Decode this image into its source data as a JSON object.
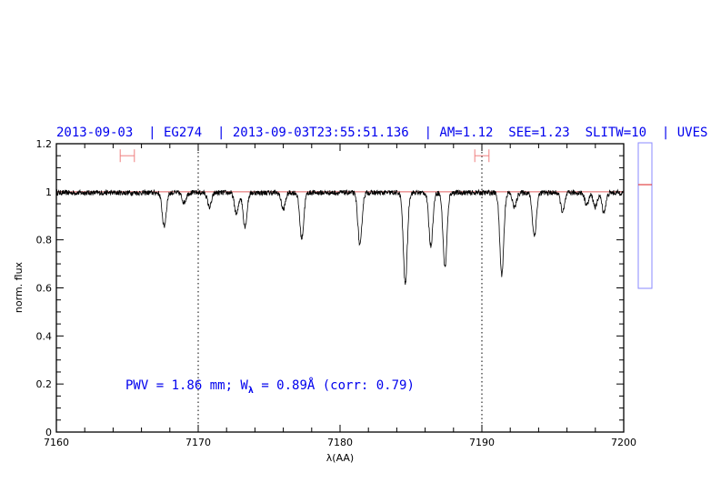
{
  "chart_data": {
    "type": "line",
    "title": "2013-09-03  | EG274  | 2013-09-03T23:55:51.136  | AM=1.12  SEE=1.23  SLITW=10  | UVES",
    "xlabel": "λ(AA)",
    "ylabel": "norm. flux",
    "xlim": [
      7160,
      7200
    ],
    "ylim": [
      0,
      1.2
    ],
    "x_ticks": [
      "7160",
      "7170",
      "7180",
      "7190",
      "7200"
    ],
    "y_ticks": [
      "0",
      "0.2",
      "0.4",
      "0.6",
      "0.8",
      "1",
      "1.2"
    ],
    "grid": false,
    "continuum_level": 1.0,
    "vertical_markers": [
      7170,
      7190
    ],
    "error_bars": [
      {
        "x_range": [
          7164.5,
          7165.5
        ],
        "y": 1.15
      },
      {
        "x_range": [
          7189.5,
          7190.5
        ],
        "y": 1.15
      }
    ],
    "absorption_lines": [
      {
        "x": 7167.6,
        "min_flux": 0.86
      },
      {
        "x": 7169.0,
        "min_flux": 0.96
      },
      {
        "x": 7170.8,
        "min_flux": 0.94
      },
      {
        "x": 7172.7,
        "min_flux": 0.91
      },
      {
        "x": 7173.3,
        "min_flux": 0.86
      },
      {
        "x": 7176.0,
        "min_flux": 0.93
      },
      {
        "x": 7177.3,
        "min_flux": 0.81
      },
      {
        "x": 7181.4,
        "min_flux": 0.78
      },
      {
        "x": 7184.6,
        "min_flux": 0.62
      },
      {
        "x": 7186.4,
        "min_flux": 0.78
      },
      {
        "x": 7187.4,
        "min_flux": 0.69
      },
      {
        "x": 7191.4,
        "min_flux": 0.66
      },
      {
        "x": 7192.3,
        "min_flux": 0.94
      },
      {
        "x": 7193.7,
        "min_flux": 0.82
      },
      {
        "x": 7195.7,
        "min_flux": 0.92
      },
      {
        "x": 7197.4,
        "min_flux": 0.95
      },
      {
        "x": 7198.0,
        "min_flux": 0.94
      },
      {
        "x": 7198.6,
        "min_flux": 0.92
      }
    ],
    "annotation": {
      "pre": "PWV = 1.86 mm; W",
      "sub": "λ",
      "post": " = 0.89Å (corr: 0.79)"
    },
    "side_panel_level": 1.03,
    "colors": {
      "title": "#0000ee",
      "spectrum": "#000000",
      "continuum": "#e06060",
      "error_bars": "#f08080",
      "side_panel_border": "#8888ff",
      "side_panel_marker": "#dd2222"
    }
  }
}
